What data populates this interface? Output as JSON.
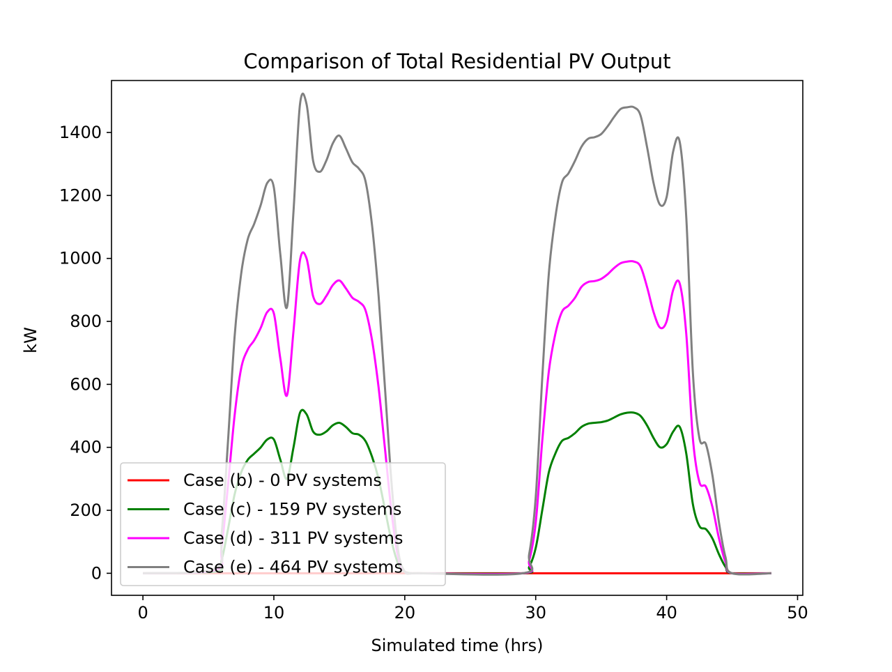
{
  "chart_data": {
    "type": "line",
    "title": "Comparison of Total Residential PV Output",
    "xlabel": "Simulated time (hrs)",
    "ylabel": "kW",
    "xlim": [
      -2.4,
      50.4
    ],
    "ylim": [
      -70,
      1565
    ],
    "xticks": [
      0,
      10,
      20,
      30,
      40,
      50
    ],
    "yticks": [
      0,
      200,
      400,
      600,
      800,
      1000,
      1200,
      1400
    ],
    "grid": false,
    "legend_position": "lower-left",
    "series": [
      {
        "name": "Case (b) - 0 PV systems",
        "color": "#ff0000",
        "x": [
          0,
          48
        ],
        "y": [
          0,
          0
        ]
      },
      {
        "name": "Case (c) - 159 PV systems",
        "color": "#008000",
        "x": [
          0,
          5.5,
          6,
          6.5,
          7,
          7.5,
          8,
          8.5,
          9,
          9.5,
          10,
          10.5,
          11,
          11.5,
          12,
          12.5,
          13,
          13.5,
          14,
          14.5,
          15,
          15.5,
          16,
          16.5,
          17,
          17.5,
          18,
          18.5,
          19,
          19.5,
          20,
          20.5,
          21,
          29,
          29.5,
          30,
          30.5,
          31,
          31.5,
          32,
          32.5,
          33,
          33.5,
          34,
          34.5,
          35,
          35.5,
          36,
          36.5,
          37,
          37.5,
          38,
          38.5,
          39,
          39.5,
          40,
          40.5,
          41,
          41.5,
          42,
          42.5,
          43,
          43.5,
          44,
          44.5,
          45,
          48
        ],
        "y": [
          0,
          5,
          40,
          140,
          250,
          320,
          360,
          380,
          400,
          425,
          425,
          360,
          300,
          400,
          510,
          505,
          450,
          440,
          450,
          470,
          478,
          465,
          445,
          440,
          420,
          370,
          300,
          200,
          100,
          30,
          5,
          0,
          0,
          0,
          20,
          80,
          200,
          320,
          380,
          420,
          430,
          445,
          465,
          475,
          478,
          480,
          485,
          495,
          505,
          510,
          510,
          500,
          470,
          430,
          400,
          410,
          450,
          465,
          380,
          220,
          150,
          140,
          110,
          60,
          20,
          0,
          0
        ]
      },
      {
        "name": "Case (d) - 311 PV systems",
        "color": "#ff00ff",
        "x": [
          0,
          5.5,
          6,
          6.5,
          7,
          7.5,
          8,
          8.5,
          9,
          9.5,
          10,
          10.5,
          11,
          11.5,
          12,
          12.5,
          13,
          13.5,
          14,
          14.5,
          15,
          15.5,
          16,
          16.5,
          17,
          17.5,
          18,
          18.5,
          19,
          19.5,
          20,
          20.5,
          21,
          29,
          29.5,
          30,
          30.5,
          31,
          31.5,
          32,
          32.5,
          33,
          33.5,
          34,
          34.5,
          35,
          35.5,
          36,
          36.5,
          37,
          37.5,
          38,
          38.5,
          39,
          39.5,
          40,
          40.5,
          41,
          41.5,
          42,
          42.5,
          43,
          43.5,
          44,
          44.5,
          45,
          48
        ],
        "y": [
          0,
          10,
          80,
          280,
          500,
          650,
          710,
          740,
          780,
          830,
          825,
          680,
          565,
          770,
          995,
          1000,
          880,
          855,
          880,
          915,
          930,
          905,
          875,
          862,
          835,
          740,
          590,
          390,
          190,
          50,
          5,
          0,
          0,
          0,
          40,
          160,
          420,
          640,
          760,
          830,
          850,
          875,
          910,
          925,
          928,
          935,
          950,
          970,
          985,
          990,
          990,
          975,
          910,
          830,
          780,
          800,
          900,
          920,
          760,
          430,
          290,
          275,
          210,
          110,
          35,
          0,
          0
        ]
      },
      {
        "name": "Case (e) - 464 PV systems",
        "color": "#808080",
        "x": [
          0,
          5.5,
          6,
          6.5,
          7,
          7.5,
          8,
          8.5,
          9,
          9.5,
          10,
          10.5,
          11,
          11.5,
          12,
          12.5,
          13,
          13.5,
          14,
          14.5,
          15,
          15.5,
          16,
          16.5,
          17,
          17.5,
          18,
          18.5,
          19,
          19.5,
          20,
          20.5,
          21,
          29,
          29.5,
          30,
          30.5,
          31,
          31.5,
          32,
          32.5,
          33,
          33.5,
          34,
          34.5,
          35,
          35.5,
          36,
          36.5,
          37,
          37.5,
          38,
          38.5,
          39,
          39.5,
          40,
          40.5,
          41,
          41.5,
          42,
          42.5,
          43,
          43.5,
          44,
          44.5,
          45,
          48
        ],
        "y": [
          0,
          15,
          120,
          420,
          750,
          950,
          1060,
          1110,
          1170,
          1240,
          1225,
          1010,
          845,
          1150,
          1490,
          1490,
          1310,
          1275,
          1310,
          1365,
          1390,
          1350,
          1305,
          1285,
          1245,
          1105,
          880,
          580,
          280,
          70,
          5,
          0,
          0,
          0,
          60,
          240,
          620,
          950,
          1130,
          1240,
          1270,
          1310,
          1355,
          1380,
          1385,
          1395,
          1420,
          1450,
          1475,
          1480,
          1480,
          1455,
          1355,
          1240,
          1170,
          1195,
          1340,
          1370,
          1130,
          640,
          430,
          410,
          310,
          160,
          50,
          0,
          0
        ]
      }
    ]
  }
}
